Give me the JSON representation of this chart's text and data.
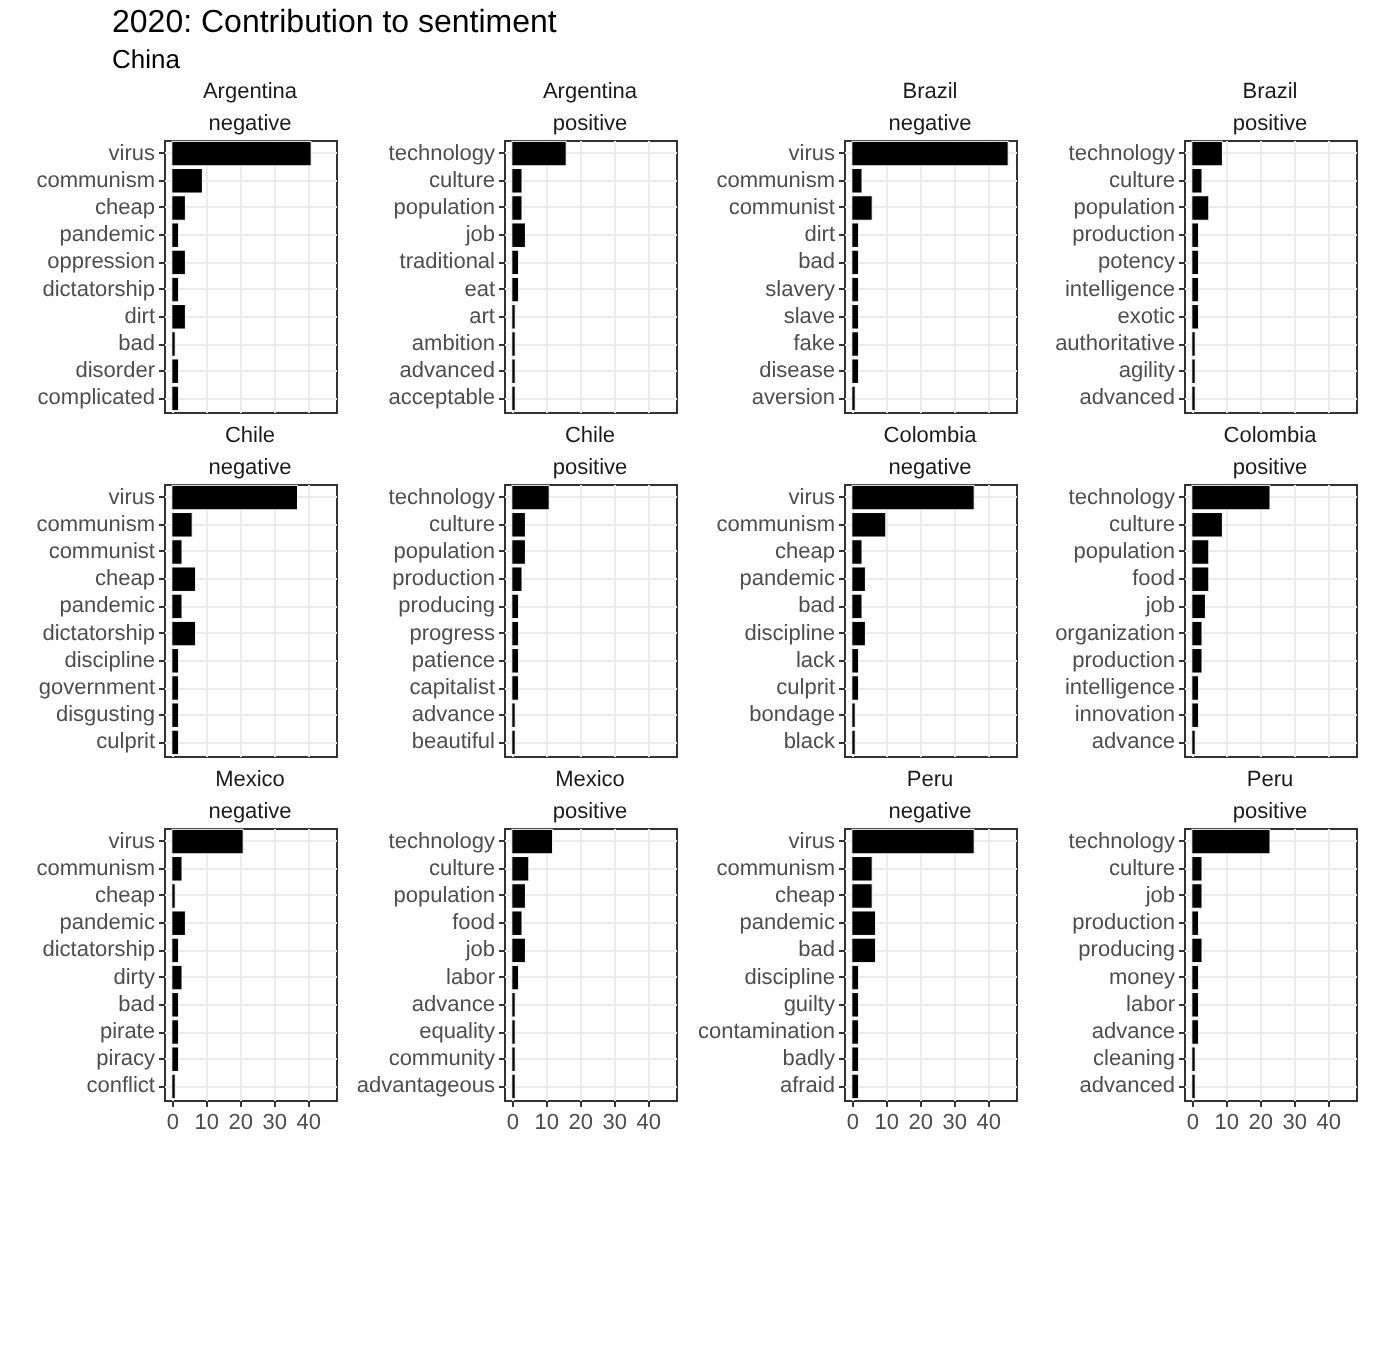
{
  "chart_data": [
    {
      "type": "bar",
      "orientation": "horizontal",
      "title": "Argentina",
      "subtitle": "negative",
      "annotations": [
        "2020: Contribution to sentiment",
        "China"
      ],
      "categories": [
        "virus",
        "communism",
        "cheap",
        "pandemic",
        "oppression",
        "dictatorship",
        "dirt",
        "bad",
        "disorder",
        "complicated"
      ],
      "values": [
        41,
        9,
        4,
        2,
        4,
        2,
        4,
        1,
        2,
        2
      ],
      "color": "#000000",
      "xlim": [
        -2.3,
        48.3
      ],
      "xticks": [
        0,
        10,
        20,
        30,
        40
      ],
      "grid": true,
      "tick_labels": "y"
    },
    {
      "type": "bar",
      "orientation": "horizontal",
      "title": "Argentina",
      "subtitle": "positive",
      "categories": [
        "technology",
        "culture",
        "population",
        "job",
        "traditional",
        "eat",
        "art",
        "ambition",
        "advanced",
        "acceptable"
      ],
      "values": [
        16,
        3,
        3,
        4,
        2,
        2,
        1,
        1,
        1,
        1
      ],
      "color": "#000000",
      "xlim": [
        -2.3,
        48.3
      ],
      "xticks": [
        0,
        10,
        20,
        30,
        40
      ],
      "grid": true,
      "tick_labels": "y"
    },
    {
      "type": "bar",
      "orientation": "horizontal",
      "title": "Brazil",
      "subtitle": "negative",
      "categories": [
        "virus",
        "communism",
        "communist",
        "dirt",
        "bad",
        "slavery",
        "slave",
        "fake",
        "disease",
        "aversion"
      ],
      "values": [
        46,
        3,
        6,
        2,
        2,
        2,
        2,
        2,
        2,
        1
      ],
      "color": "#000000",
      "xlim": [
        -2.3,
        48.3
      ],
      "xticks": [
        0,
        10,
        20,
        30,
        40
      ],
      "grid": true,
      "tick_labels": "y"
    },
    {
      "type": "bar",
      "orientation": "horizontal",
      "title": "Brazil",
      "subtitle": "positive",
      "categories": [
        "technology",
        "culture",
        "population",
        "production",
        "potency",
        "intelligence",
        "exotic",
        "authoritative",
        "agility",
        "advanced"
      ],
      "values": [
        9,
        3,
        5,
        2,
        2,
        2,
        2,
        1,
        1,
        1
      ],
      "color": "#000000",
      "xlim": [
        -2.3,
        48.3
      ],
      "xticks": [
        0,
        10,
        20,
        30,
        40
      ],
      "grid": true,
      "tick_labels": "y"
    },
    {
      "type": "bar",
      "orientation": "horizontal",
      "title": "Chile",
      "subtitle": "negative",
      "categories": [
        "virus",
        "communism",
        "communist",
        "cheap",
        "pandemic",
        "dictatorship",
        "discipline",
        "government",
        "disgusting",
        "culprit"
      ],
      "values": [
        37,
        6,
        3,
        7,
        3,
        7,
        2,
        2,
        2,
        2
      ],
      "color": "#000000",
      "xlim": [
        -2.3,
        48.3
      ],
      "xticks": [
        0,
        10,
        20,
        30,
        40
      ],
      "grid": true,
      "tick_labels": "y"
    },
    {
      "type": "bar",
      "orientation": "horizontal",
      "title": "Chile",
      "subtitle": "positive",
      "categories": [
        "technology",
        "culture",
        "population",
        "production",
        "producing",
        "progress",
        "patience",
        "capitalist",
        "advance",
        "beautiful"
      ],
      "values": [
        11,
        4,
        4,
        3,
        2,
        2,
        2,
        2,
        1,
        1
      ],
      "color": "#000000",
      "xlim": [
        -2.3,
        48.3
      ],
      "xticks": [
        0,
        10,
        20,
        30,
        40
      ],
      "grid": true,
      "tick_labels": "y"
    },
    {
      "type": "bar",
      "orientation": "horizontal",
      "title": "Colombia",
      "subtitle": "negative",
      "categories": [
        "virus",
        "communism",
        "cheap",
        "pandemic",
        "bad",
        "discipline",
        "lack",
        "culprit",
        "bondage",
        "black"
      ],
      "values": [
        36,
        10,
        3,
        4,
        3,
        4,
        2,
        2,
        1,
        1
      ],
      "color": "#000000",
      "xlim": [
        -2.3,
        48.3
      ],
      "xticks": [
        0,
        10,
        20,
        30,
        40
      ],
      "grid": true,
      "tick_labels": "y"
    },
    {
      "type": "bar",
      "orientation": "horizontal",
      "title": "Colombia",
      "subtitle": "positive",
      "categories": [
        "technology",
        "culture",
        "population",
        "food",
        "job",
        "organization",
        "production",
        "intelligence",
        "innovation",
        "advance"
      ],
      "values": [
        23,
        9,
        5,
        5,
        4,
        3,
        3,
        2,
        2,
        1
      ],
      "color": "#000000",
      "xlim": [
        -2.3,
        48.3
      ],
      "xticks": [
        0,
        10,
        20,
        30,
        40
      ],
      "grid": true,
      "tick_labels": "y"
    },
    {
      "type": "bar",
      "orientation": "horizontal",
      "title": "Mexico",
      "subtitle": "negative",
      "categories": [
        "virus",
        "communism",
        "cheap",
        "pandemic",
        "dictatorship",
        "dirty",
        "bad",
        "pirate",
        "piracy",
        "conflict"
      ],
      "values": [
        21,
        3,
        1,
        4,
        2,
        3,
        2,
        2,
        2,
        1
      ],
      "color": "#000000",
      "xlim": [
        -2.3,
        48.3
      ],
      "xticks": [
        0,
        10,
        20,
        30,
        40
      ],
      "grid": true
    },
    {
      "type": "bar",
      "orientation": "horizontal",
      "title": "Mexico",
      "subtitle": "positive",
      "categories": [
        "technology",
        "culture",
        "population",
        "food",
        "job",
        "labor",
        "advance",
        "equality",
        "community",
        "advantageous"
      ],
      "values": [
        12,
        5,
        4,
        3,
        4,
        2,
        1,
        1,
        1,
        1
      ],
      "color": "#000000",
      "xlim": [
        -2.3,
        48.3
      ],
      "xticks": [
        0,
        10,
        20,
        30,
        40
      ],
      "grid": true
    },
    {
      "type": "bar",
      "orientation": "horizontal",
      "title": "Peru",
      "subtitle": "negative",
      "categories": [
        "virus",
        "communism",
        "cheap",
        "pandemic",
        "bad",
        "discipline",
        "guilty",
        "contamination",
        "badly",
        "afraid"
      ],
      "values": [
        36,
        6,
        6,
        7,
        7,
        2,
        2,
        2,
        2,
        2
      ],
      "color": "#000000",
      "xlim": [
        -2.3,
        48.3
      ],
      "xticks": [
        0,
        10,
        20,
        30,
        40
      ],
      "grid": true
    },
    {
      "type": "bar",
      "orientation": "horizontal",
      "title": "Peru",
      "subtitle": "positive",
      "categories": [
        "technology",
        "culture",
        "job",
        "production",
        "producing",
        "money",
        "labor",
        "advance",
        "cleaning",
        "advanced"
      ],
      "values": [
        23,
        3,
        3,
        2,
        3,
        2,
        2,
        2,
        1,
        1
      ],
      "color": "#000000",
      "xlim": [
        -2.3,
        48.3
      ],
      "xticks": [
        0,
        10,
        20,
        30,
        40
      ],
      "grid": true
    }
  ]
}
